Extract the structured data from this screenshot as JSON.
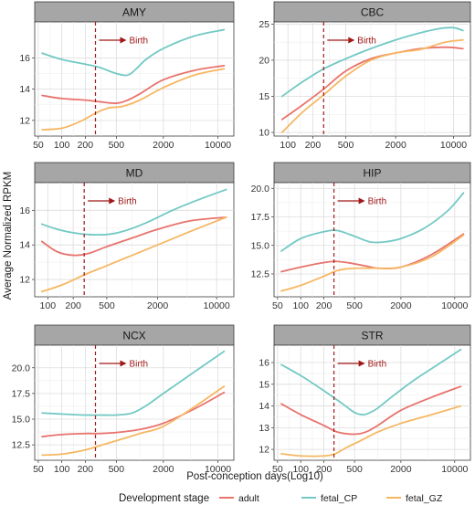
{
  "chart_data": {
    "type": "line",
    "xscale": "log10",
    "xlabel": "Post-conception days(Log10)",
    "ylabel": "Average Normalized RPKM",
    "birth_day": 270,
    "birth_label": "Birth",
    "colors": {
      "adult": "#e8736c",
      "fetal_CP": "#72c9c5",
      "fetal_GZ": "#f6b763",
      "birth": "#a01818"
    },
    "legend": {
      "title": "Development stage",
      "position": "bottom",
      "items": [
        "adult",
        "fetal_CP",
        "fetal_GZ"
      ]
    },
    "panels": [
      {
        "title": "AMY",
        "xlim": [
          45,
          16000
        ],
        "ylim": [
          11,
          18.3
        ],
        "xticks": [
          50,
          100,
          200,
          500,
          2000,
          10000
        ],
        "xtick_labels": [
          "50",
          "100",
          "200",
          "500",
          "2000",
          "10000"
        ],
        "yticks": [
          12,
          14,
          16
        ],
        "ytick_labels": [
          "12",
          "14",
          "16"
        ],
        "series": [
          {
            "name": "adult",
            "x": [
              56,
              100,
              200,
              300,
              500,
              700,
              1000,
              2000,
              5000,
              12000
            ],
            "y": [
              13.6,
              13.4,
              13.3,
              13.2,
              13.1,
              13.3,
              13.7,
              14.6,
              15.2,
              15.5
            ]
          },
          {
            "name": "fetal_CP",
            "x": [
              56,
              100,
              200,
              300,
              500,
              700,
              900,
              1200,
              2000,
              5000,
              12000
            ],
            "y": [
              16.3,
              15.9,
              15.6,
              15.4,
              15.0,
              14.9,
              15.3,
              15.9,
              16.6,
              17.4,
              17.8
            ]
          },
          {
            "name": "fetal_GZ",
            "x": [
              56,
              100,
              150,
              200,
              280,
              400,
              600,
              1000,
              2000,
              5000,
              12000
            ],
            "y": [
              11.4,
              11.5,
              11.8,
              12.1,
              12.5,
              12.8,
              12.9,
              13.3,
              14.1,
              14.9,
              15.3
            ]
          }
        ]
      },
      {
        "title": "CBC",
        "xlim": [
          68,
          16000
        ],
        "ylim": [
          9.5,
          25.3
        ],
        "xticks": [
          100,
          200,
          500,
          2000,
          10000
        ],
        "xtick_labels": [
          "100",
          "200",
          "500",
          "2000",
          "10000"
        ],
        "yticks": [
          10,
          15,
          20,
          25
        ],
        "ytick_labels": [
          "10",
          "15",
          "20",
          "25"
        ],
        "series": [
          {
            "name": "adult",
            "x": [
              85,
              150,
              270,
              500,
              1000,
              2000,
              4000,
              8000,
              13000
            ],
            "y": [
              11.8,
              13.8,
              16.0,
              18.5,
              20.2,
              21.0,
              21.6,
              21.8,
              21.6
            ]
          },
          {
            "name": "fetal_CP",
            "x": [
              85,
              150,
              270,
              500,
              1000,
              2000,
              4000,
              7000,
              10000,
              13000
            ],
            "y": [
              15.0,
              17.0,
              18.8,
              20.2,
              21.6,
              22.8,
              23.8,
              24.4,
              24.5,
              24.1
            ]
          },
          {
            "name": "fetal_GZ",
            "x": [
              85,
              150,
              270,
              500,
              1000,
              2000,
              4000,
              8000,
              13000
            ],
            "y": [
              10.0,
              12.8,
              15.2,
              17.8,
              20.0,
              21.0,
              21.5,
              22.5,
              22.8
            ]
          }
        ]
      },
      {
        "title": "MD",
        "xlim": [
          70,
          16000
        ],
        "ylim": [
          11,
          17.6
        ],
        "xticks": [
          100,
          200,
          500,
          2000,
          10000
        ],
        "xtick_labels": [
          "100",
          "200",
          "500",
          "2000",
          "10000"
        ],
        "yticks": [
          12,
          14,
          16
        ],
        "ytick_labels": [
          "12",
          "14",
          "16"
        ],
        "series": [
          {
            "name": "adult",
            "x": [
              85,
              130,
              200,
              300,
              500,
              1000,
              2000,
              5000,
              13000
            ],
            "y": [
              14.2,
              13.6,
              13.4,
              13.5,
              13.9,
              14.4,
              14.9,
              15.4,
              15.6
            ]
          },
          {
            "name": "fetal_CP",
            "x": [
              85,
              130,
              200,
              300,
              500,
              800,
              1500,
              3000,
              6000,
              13000
            ],
            "y": [
              15.2,
              14.9,
              14.7,
              14.6,
              14.6,
              14.8,
              15.3,
              16.0,
              16.6,
              17.2
            ]
          },
          {
            "name": "fetal_GZ",
            "x": [
              85,
              150,
              280,
              500,
              1000,
              2000,
              5000,
              13000
            ],
            "y": [
              11.3,
              11.7,
              12.3,
              12.8,
              13.4,
              14.0,
              14.8,
              15.6
            ]
          }
        ]
      },
      {
        "title": "HIP",
        "xlim": [
          45,
          16000
        ],
        "ylim": [
          10.5,
          20.5
        ],
        "xticks": [
          50,
          100,
          200,
          500,
          2000,
          10000
        ],
        "xtick_labels": [
          "50",
          "100",
          "200",
          "500",
          "2000",
          "10000"
        ],
        "yticks": [
          12.5,
          15.0,
          17.5,
          20.0
        ],
        "ytick_labels": [
          "12.5",
          "15.0",
          "17.5",
          "20.0"
        ],
        "series": [
          {
            "name": "adult",
            "x": [
              56,
              100,
              200,
              280,
              400,
              700,
              1000,
              2000,
              5000,
              13000
            ],
            "y": [
              12.7,
              13.1,
              13.5,
              13.6,
              13.5,
              13.2,
              13.0,
              13.1,
              14.2,
              16.0
            ]
          },
          {
            "name": "fetal_CP",
            "x": [
              56,
              100,
              200,
              300,
              500,
              800,
              1200,
              2000,
              4000,
              8000,
              13000
            ],
            "y": [
              14.5,
              15.6,
              16.2,
              16.3,
              15.8,
              15.3,
              15.3,
              15.6,
              16.5,
              18.0,
              19.6
            ]
          },
          {
            "name": "fetal_GZ",
            "x": [
              56,
              100,
              200,
              300,
              500,
              1000,
              2000,
              5000,
              13000
            ],
            "y": [
              11.0,
              11.5,
              12.3,
              12.8,
              13.0,
              13.0,
              13.1,
              14.0,
              15.9
            ]
          }
        ]
      },
      {
        "title": "NCX",
        "xlim": [
          45,
          16000
        ],
        "ylim": [
          11,
          22.2
        ],
        "xticks": [
          50,
          100,
          200,
          500,
          2000,
          10000
        ],
        "xtick_labels": [
          "50",
          "100",
          "200",
          "500",
          "2000",
          "10000"
        ],
        "yticks": [
          12.5,
          15.0,
          17.5,
          20.0
        ],
        "ytick_labels": [
          "12.5",
          "15.0",
          "17.5",
          "20.0"
        ],
        "series": [
          {
            "name": "adult",
            "x": [
              56,
              100,
              200,
              300,
              500,
              1000,
              2000,
              5000,
              12000
            ],
            "y": [
              13.3,
              13.5,
              13.6,
              13.6,
              13.7,
              14.0,
              14.6,
              16.0,
              17.6
            ]
          },
          {
            "name": "fetal_CP",
            "x": [
              56,
              100,
              200,
              300,
              500,
              800,
              1200,
              2000,
              5000,
              12000
            ],
            "y": [
              15.6,
              15.5,
              15.4,
              15.4,
              15.4,
              15.6,
              16.3,
              17.5,
              19.6,
              21.6
            ]
          },
          {
            "name": "fetal_GZ",
            "x": [
              56,
              100,
              200,
              300,
              500,
              1000,
              2000,
              5000,
              12000
            ],
            "y": [
              11.5,
              11.6,
              12.0,
              12.4,
              12.9,
              13.6,
              14.3,
              16.2,
              18.2
            ]
          }
        ]
      },
      {
        "title": "STR",
        "xlim": [
          45,
          16000
        ],
        "ylim": [
          11.5,
          16.8
        ],
        "xticks": [
          50,
          100,
          200,
          500,
          2000,
          10000
        ],
        "xtick_labels": [
          "50",
          "100",
          "200",
          "500",
          "2000",
          "10000"
        ],
        "yticks": [
          12,
          13,
          14,
          15,
          16
        ],
        "ytick_labels": [
          "12",
          "13",
          "14",
          "15",
          "16"
        ],
        "series": [
          {
            "name": "adult",
            "x": [
              56,
              100,
              200,
              300,
              500,
              700,
              1000,
              2000,
              5000,
              12000
            ],
            "y": [
              14.1,
              13.6,
              13.1,
              12.8,
              12.7,
              12.8,
              13.1,
              13.8,
              14.4,
              14.9
            ]
          },
          {
            "name": "fetal_CP",
            "x": [
              56,
              100,
              200,
              350,
              500,
              650,
              800,
              1000,
              1500,
              3000,
              6000,
              12000
            ],
            "y": [
              15.9,
              15.4,
              14.7,
              14.1,
              13.7,
              13.6,
              13.7,
              13.9,
              14.4,
              15.2,
              15.9,
              16.6
            ]
          },
          {
            "name": "fetal_GZ",
            "x": [
              56,
              100,
              200,
              280,
              400,
              600,
              1000,
              2000,
              5000,
              12000
            ],
            "y": [
              11.8,
              11.7,
              11.7,
              11.8,
              12.1,
              12.4,
              12.8,
              13.2,
              13.6,
              14.0
            ]
          }
        ]
      }
    ]
  }
}
